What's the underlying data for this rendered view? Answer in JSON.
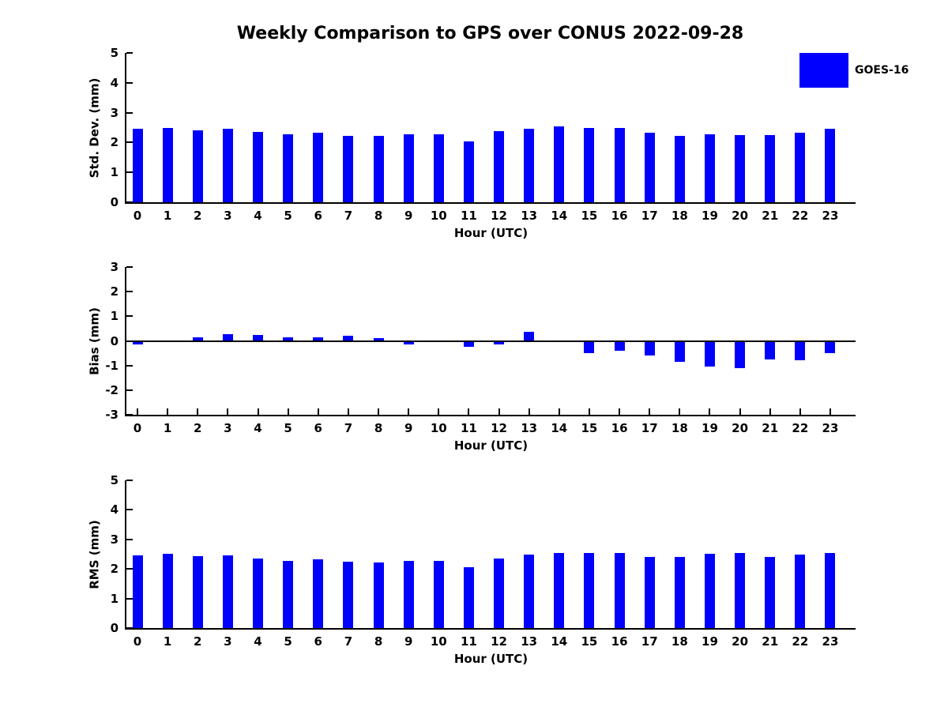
{
  "figure": {
    "title": "Weekly Comparison to GPS over CONUS 2022-09-28",
    "background": "#ffffff",
    "bar_color": "#0000ff",
    "axis_color": "#000000",
    "legend": {
      "label": "GOES-16",
      "swatch_color": "#0000ff",
      "position": "top-right"
    }
  },
  "chart_data": [
    {
      "type": "bar",
      "id": "std-dev",
      "xlabel": "Hour (UTC)",
      "ylabel": "Std. Dev. (mm)",
      "ylim": [
        0,
        5
      ],
      "yticks": [
        0,
        1,
        2,
        3,
        4,
        5
      ],
      "grid": false,
      "categories": [
        0,
        1,
        2,
        3,
        4,
        5,
        6,
        7,
        8,
        9,
        10,
        11,
        12,
        13,
        14,
        15,
        16,
        17,
        18,
        19,
        20,
        21,
        22,
        23
      ],
      "series": [
        {
          "name": "GOES-16",
          "values": [
            2.45,
            2.5,
            2.4,
            2.45,
            2.35,
            2.28,
            2.33,
            2.23,
            2.22,
            2.28,
            2.28,
            2.05,
            2.37,
            2.47,
            2.53,
            2.5,
            2.5,
            2.32,
            2.22,
            2.28,
            2.24,
            2.26,
            2.34,
            2.47
          ]
        }
      ]
    },
    {
      "type": "bar",
      "id": "bias",
      "xlabel": "Hour (UTC)",
      "ylabel": "Bias (mm)",
      "ylim": [
        -3,
        3
      ],
      "yticks": [
        3,
        2,
        1,
        0,
        -1,
        -2,
        -3
      ],
      "grid": false,
      "zero_line": true,
      "categories": [
        0,
        1,
        2,
        3,
        4,
        5,
        6,
        7,
        8,
        9,
        10,
        11,
        12,
        13,
        14,
        15,
        16,
        17,
        18,
        19,
        20,
        21,
        22,
        23
      ],
      "series": [
        {
          "name": "GOES-16",
          "values": [
            -0.15,
            0.0,
            0.15,
            0.28,
            0.25,
            0.15,
            0.15,
            0.2,
            0.1,
            -0.15,
            -0.05,
            -0.25,
            -0.15,
            0.38,
            -0.05,
            -0.5,
            -0.4,
            -0.6,
            -0.85,
            -1.05,
            -1.1,
            -0.75,
            -0.8,
            -0.5
          ]
        }
      ]
    },
    {
      "type": "bar",
      "id": "rms",
      "xlabel": "Hour (UTC)",
      "ylabel": "RMS (mm)",
      "ylim": [
        0,
        5
      ],
      "yticks": [
        0,
        1,
        2,
        3,
        4,
        5
      ],
      "grid": false,
      "categories": [
        0,
        1,
        2,
        3,
        4,
        5,
        6,
        7,
        8,
        9,
        10,
        11,
        12,
        13,
        14,
        15,
        16,
        17,
        18,
        19,
        20,
        21,
        22,
        23
      ],
      "series": [
        {
          "name": "GOES-16",
          "values": [
            2.47,
            2.51,
            2.43,
            2.46,
            2.36,
            2.28,
            2.33,
            2.24,
            2.23,
            2.28,
            2.28,
            2.07,
            2.36,
            2.48,
            2.53,
            2.54,
            2.54,
            2.4,
            2.4,
            2.52,
            2.53,
            2.4,
            2.5,
            2.55
          ]
        }
      ]
    }
  ]
}
